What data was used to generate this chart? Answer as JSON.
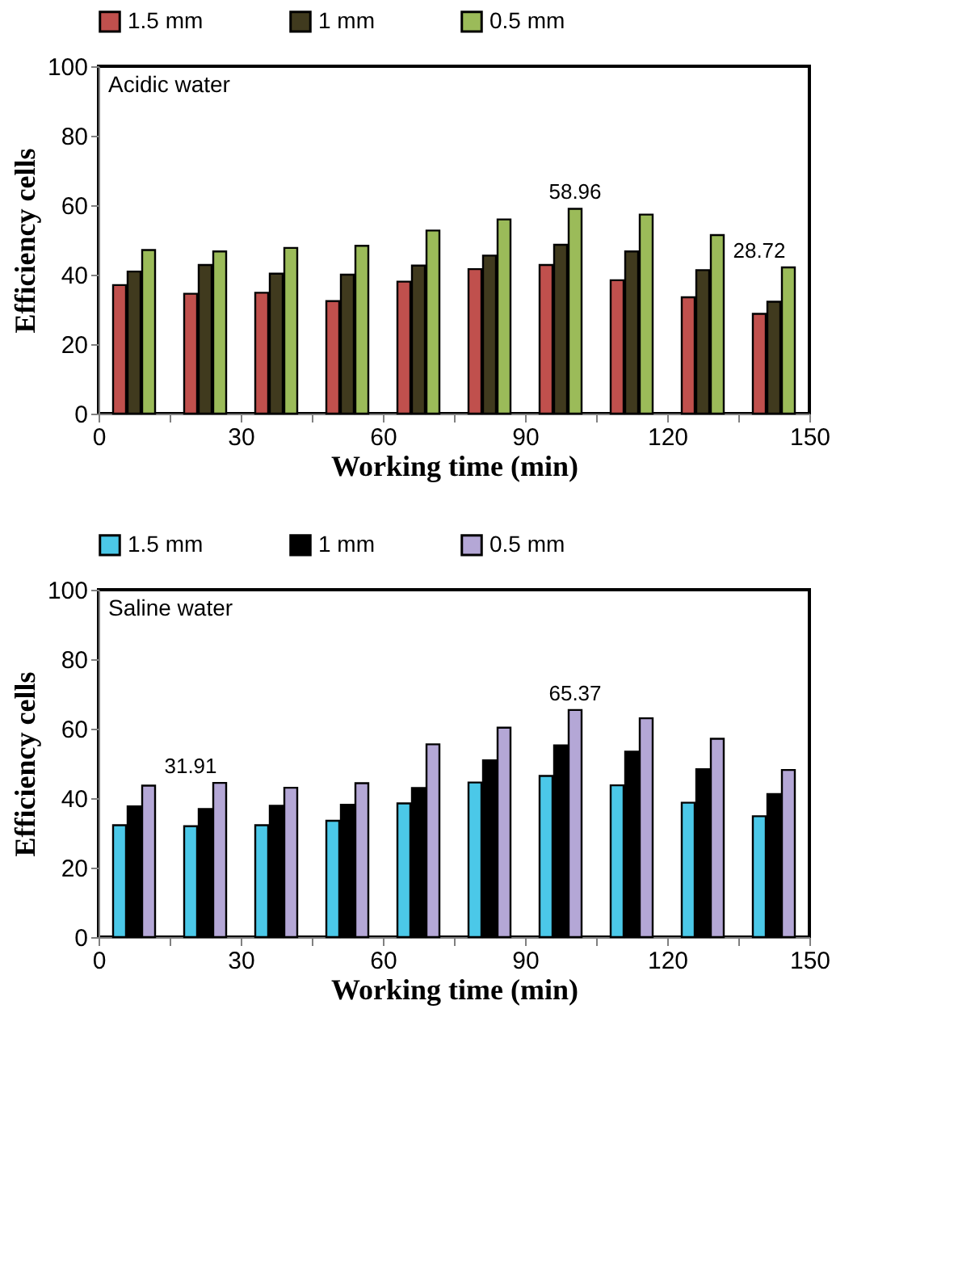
{
  "chart_data": [
    {
      "type": "bar",
      "subtitle": "Acidic water",
      "xlabel": "Working time (min)",
      "ylabel": "Efficiency cells",
      "x": [
        7.5,
        22.5,
        37.5,
        52.5,
        67.5,
        82.5,
        97.5,
        112.5,
        127.5,
        142.5
      ],
      "xlim": [
        0,
        150
      ],
      "xticks": [
        0,
        {
          "value": 15,
          "label": null
        },
        30,
        {
          "value": 45,
          "label": null
        },
        60,
        {
          "value": 75,
          "label": null
        },
        90,
        {
          "value": 105,
          "label": null
        },
        120,
        {
          "value": 135,
          "label": null
        },
        150
      ],
      "ylim": [
        0,
        100
      ],
      "yticks": [
        0,
        20,
        40,
        60,
        80,
        100
      ],
      "grid": false,
      "legend": "top",
      "series": [
        {
          "name": "1.5 mm",
          "color": "#c0504d",
          "values": [
            37.0,
            34.5,
            34.8,
            32.4,
            38.0,
            41.6,
            42.8,
            38.4,
            33.5,
            28.72
          ],
          "value_labels": [
            null,
            null,
            null,
            null,
            null,
            null,
            null,
            null,
            null,
            "28.72"
          ]
        },
        {
          "name": "1 mm",
          "color": "#403a1e",
          "values": [
            40.9,
            42.8,
            40.3,
            40.0,
            42.6,
            45.5,
            48.6,
            46.7,
            41.3,
            32.2
          ]
        },
        {
          "name": "0.5 mm",
          "color": "#9bbb59",
          "values": [
            47.1,
            46.7,
            47.7,
            48.3,
            52.7,
            55.9,
            58.96,
            57.3,
            51.4,
            42.1
          ],
          "value_labels": [
            null,
            null,
            null,
            null,
            null,
            null,
            "58.96",
            null,
            null,
            null
          ]
        }
      ]
    },
    {
      "type": "bar",
      "subtitle": "Saline water",
      "xlabel": "Working time (min)",
      "ylabel": "Efficiency cells",
      "x": [
        7.5,
        22.5,
        37.5,
        52.5,
        67.5,
        82.5,
        97.5,
        112.5,
        127.5,
        142.5
      ],
      "xlim": [
        0,
        150
      ],
      "xticks": [
        0,
        {
          "value": 15,
          "label": null
        },
        30,
        {
          "value": 45,
          "label": null
        },
        60,
        {
          "value": 75,
          "label": null
        },
        90,
        {
          "value": 105,
          "label": null
        },
        120,
        {
          "value": 135,
          "label": null
        },
        150
      ],
      "ylim": [
        0,
        100
      ],
      "yticks": [
        0,
        20,
        40,
        60,
        80,
        100
      ],
      "grid": false,
      "legend": "top",
      "series": [
        {
          "name": "1.5 mm",
          "color": "#4bc8e8",
          "values": [
            32.2,
            31.91,
            32.2,
            33.5,
            38.5,
            44.5,
            46.4,
            43.7,
            38.7,
            34.8
          ],
          "value_labels": [
            null,
            "31.91",
            null,
            null,
            null,
            null,
            null,
            null,
            null,
            null
          ]
        },
        {
          "name": "1 mm",
          "color": "#000000",
          "values": [
            37.6,
            36.9,
            37.8,
            38.1,
            42.9,
            50.9,
            55.2,
            53.4,
            48.3,
            41.2
          ]
        },
        {
          "name": "0.5 mm",
          "color": "#b4a7d6",
          "values": [
            43.6,
            44.4,
            43.0,
            44.3,
            55.5,
            60.3,
            65.37,
            63.0,
            57.1,
            48.1
          ],
          "value_labels": [
            null,
            null,
            null,
            null,
            null,
            null,
            "65.37",
            null,
            null,
            null
          ]
        }
      ]
    }
  ]
}
